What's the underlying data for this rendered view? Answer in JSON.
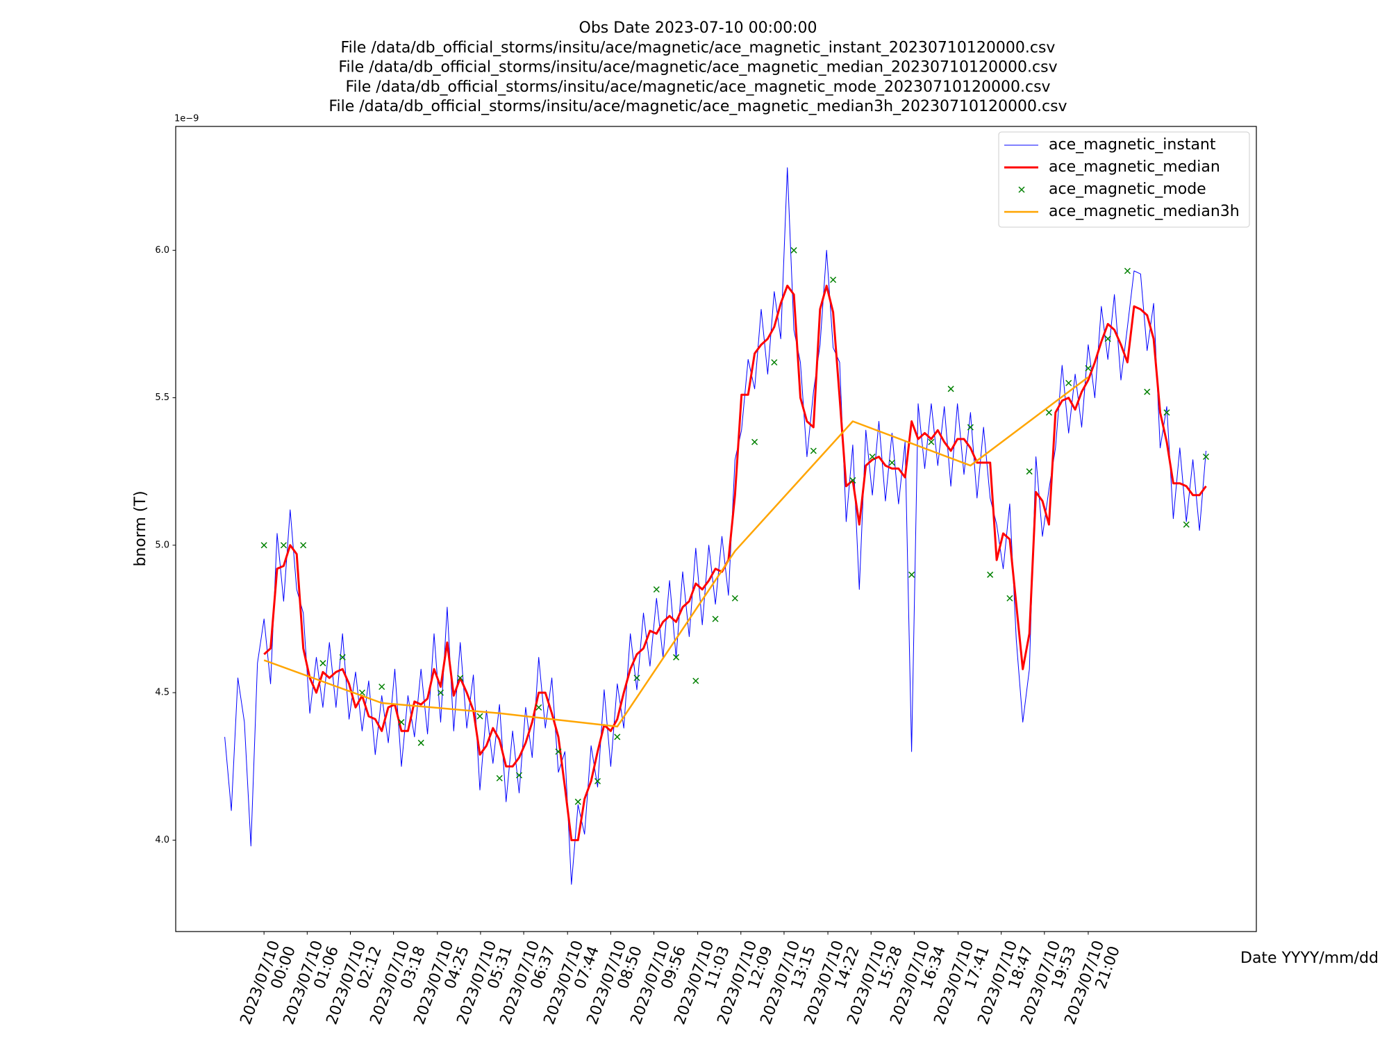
{
  "chart_data": {
    "type": "line",
    "title": [
      "Obs Date 2023-07-10 00:00:00",
      "File /data/db_official_storms/insitu/ace/magnetic/ace_magnetic_instant_20230710120000.csv",
      "File /data/db_official_storms/insitu/ace/magnetic/ace_magnetic_median_20230710120000.csv",
      "File /data/db_official_storms/insitu/ace/magnetic/ace_magnetic_mode_20230710120000.csv",
      "File /data/db_official_storms/insitu/ace/magnetic/ace_magnetic_median3h_20230710120000.csv"
    ],
    "xlabel": "Date YYYY/mm/dd",
    "ylabel": "bnorm (T)",
    "y_offset_label": "1e−9",
    "legend": "upper right",
    "xlim": [
      "2023-07-09T21:45",
      "2023-07-11T01:17"
    ],
    "ylim": [
      3.69,
      6.42
    ],
    "yticks": [
      {
        "value": 4,
        "label": "4.0"
      },
      {
        "value": 4.5,
        "label": "4.5"
      },
      {
        "value": 5,
        "label": "5.0"
      },
      {
        "value": 5.5,
        "label": "5.5"
      },
      {
        "value": 6,
        "label": "6.0"
      }
    ],
    "xticks": [
      {
        "value": "2023-07-10T00:00",
        "label": "2023/07/10\n00:00"
      },
      {
        "value": "2023-07-10T01:06",
        "label": "2023/07/10\n01:06"
      },
      {
        "value": "2023-07-10T02:12",
        "label": "2023/07/10\n02:12"
      },
      {
        "value": "2023-07-10T03:18",
        "label": "2023/07/10\n03:18"
      },
      {
        "value": "2023-07-10T04:25",
        "label": "2023/07/10\n04:25"
      },
      {
        "value": "2023-07-10T05:31",
        "label": "2023/07/10\n05:31"
      },
      {
        "value": "2023-07-10T06:37",
        "label": "2023/07/10\n06:37"
      },
      {
        "value": "2023-07-10T07:44",
        "label": "2023/07/10\n07:44"
      },
      {
        "value": "2023-07-10T08:50",
        "label": "2023/07/10\n08:50"
      },
      {
        "value": "2023-07-10T09:56",
        "label": "2023/07/10\n09:56"
      },
      {
        "value": "2023-07-10T11:03",
        "label": "2023/07/10\n11:03"
      },
      {
        "value": "2023-07-10T12:09",
        "label": "2023/07/10\n12:09"
      },
      {
        "value": "2023-07-10T13:15",
        "label": "2023/07/10\n13:15"
      },
      {
        "value": "2023-07-10T14:22",
        "label": "2023/07/10\n14:22"
      },
      {
        "value": "2023-07-10T15:28",
        "label": "2023/07/10\n15:28"
      },
      {
        "value": "2023-07-10T16:34",
        "label": "2023/07/10\n16:34"
      },
      {
        "value": "2023-07-10T17:41",
        "label": "2023/07/10\n17:41"
      },
      {
        "value": "2023-07-10T18:47",
        "label": "2023/07/10\n18:47"
      },
      {
        "value": "2023-07-10T19:53",
        "label": "2023/07/10\n19:53"
      },
      {
        "value": "2023-07-10T21:00",
        "label": "2023/07/10\n21:00"
      }
    ],
    "x": [
      "2023-07-09T23:00",
      "2023-07-09T23:10",
      "2023-07-09T23:20",
      "2023-07-09T23:30",
      "2023-07-09T23:40",
      "2023-07-09T23:50",
      "2023-07-10T00:00",
      "2023-07-10T00:10",
      "2023-07-10T00:20",
      "2023-07-10T00:30",
      "2023-07-10T00:40",
      "2023-07-10T00:50",
      "2023-07-10T01:00",
      "2023-07-10T01:10",
      "2023-07-10T01:20",
      "2023-07-10T01:30",
      "2023-07-10T01:40",
      "2023-07-10T01:50",
      "2023-07-10T02:00",
      "2023-07-10T02:10",
      "2023-07-10T02:20",
      "2023-07-10T02:30",
      "2023-07-10T02:40",
      "2023-07-10T02:50",
      "2023-07-10T03:00",
      "2023-07-10T03:10",
      "2023-07-10T03:20",
      "2023-07-10T03:30",
      "2023-07-10T03:40",
      "2023-07-10T03:50",
      "2023-07-10T04:00",
      "2023-07-10T04:10",
      "2023-07-10T04:20",
      "2023-07-10T04:30",
      "2023-07-10T04:40",
      "2023-07-10T04:50",
      "2023-07-10T05:00",
      "2023-07-10T05:10",
      "2023-07-10T05:20",
      "2023-07-10T05:30",
      "2023-07-10T05:40",
      "2023-07-10T05:50",
      "2023-07-10T06:00",
      "2023-07-10T06:10",
      "2023-07-10T06:20",
      "2023-07-10T06:30",
      "2023-07-10T06:40",
      "2023-07-10T06:50",
      "2023-07-10T07:00",
      "2023-07-10T07:10",
      "2023-07-10T07:20",
      "2023-07-10T07:30",
      "2023-07-10T07:40",
      "2023-07-10T07:50",
      "2023-07-10T08:00",
      "2023-07-10T08:10",
      "2023-07-10T08:20",
      "2023-07-10T08:30",
      "2023-07-10T08:40",
      "2023-07-10T08:50",
      "2023-07-10T09:00",
      "2023-07-10T09:10",
      "2023-07-10T09:20",
      "2023-07-10T09:30",
      "2023-07-10T09:40",
      "2023-07-10T09:50",
      "2023-07-10T10:00",
      "2023-07-10T10:10",
      "2023-07-10T10:20",
      "2023-07-10T10:30",
      "2023-07-10T10:40",
      "2023-07-10T10:50",
      "2023-07-10T11:00",
      "2023-07-10T11:10",
      "2023-07-10T11:20",
      "2023-07-10T11:30",
      "2023-07-10T11:40",
      "2023-07-10T11:50",
      "2023-07-10T12:00",
      "2023-07-10T12:10",
      "2023-07-10T12:20",
      "2023-07-10T12:30",
      "2023-07-10T12:40",
      "2023-07-10T12:50",
      "2023-07-10T13:00",
      "2023-07-10T13:10",
      "2023-07-10T13:20",
      "2023-07-10T13:30",
      "2023-07-10T13:40",
      "2023-07-10T13:50",
      "2023-07-10T14:00",
      "2023-07-10T14:10",
      "2023-07-10T14:20",
      "2023-07-10T14:30",
      "2023-07-10T14:40",
      "2023-07-10T14:50",
      "2023-07-10T15:00",
      "2023-07-10T15:10",
      "2023-07-10T15:20",
      "2023-07-10T15:30",
      "2023-07-10T15:40",
      "2023-07-10T15:50",
      "2023-07-10T16:00",
      "2023-07-10T16:10",
      "2023-07-10T16:20",
      "2023-07-10T16:30",
      "2023-07-10T16:40",
      "2023-07-10T16:50",
      "2023-07-10T17:00",
      "2023-07-10T17:10",
      "2023-07-10T17:20",
      "2023-07-10T17:30",
      "2023-07-10T17:40",
      "2023-07-10T17:50",
      "2023-07-10T18:00",
      "2023-07-10T18:10",
      "2023-07-10T18:20",
      "2023-07-10T18:30",
      "2023-07-10T18:40",
      "2023-07-10T18:50",
      "2023-07-10T19:00",
      "2023-07-10T19:10",
      "2023-07-10T19:20",
      "2023-07-10T19:30",
      "2023-07-10T19:40",
      "2023-07-10T19:50",
      "2023-07-10T20:00",
      "2023-07-10T20:10",
      "2023-07-10T20:20",
      "2023-07-10T20:30",
      "2023-07-10T20:40",
      "2023-07-10T20:50",
      "2023-07-10T21:00",
      "2023-07-10T21:10",
      "2023-07-10T21:20",
      "2023-07-10T21:30",
      "2023-07-10T21:40",
      "2023-07-10T21:50",
      "2023-07-10T22:00",
      "2023-07-10T22:10",
      "2023-07-10T22:20",
      "2023-07-10T22:30",
      "2023-07-10T22:40",
      "2023-07-10T22:50",
      "2023-07-10T23:00",
      "2023-07-10T23:10",
      "2023-07-10T23:20",
      "2023-07-10T23:30",
      "2023-07-10T23:40",
      "2023-07-10T23:50",
      "2023-07-11T00:00"
    ],
    "series": [
      {
        "name": "ace_magnetic_instant",
        "color": "#0000ff",
        "kind": "line",
        "line_width": 1,
        "values": [
          4.35,
          4.1,
          4.55,
          4.4,
          3.98,
          4.6,
          4.75,
          4.53,
          5.04,
          4.81,
          5.12,
          4.85,
          4.77,
          4.43,
          4.62,
          4.45,
          4.67,
          4.45,
          4.7,
          4.41,
          4.57,
          4.37,
          4.54,
          4.29,
          4.49,
          4.33,
          4.58,
          4.25,
          4.49,
          4.35,
          4.58,
          4.36,
          4.7,
          4.4,
          4.79,
          4.37,
          4.67,
          4.38,
          4.56,
          4.17,
          4.44,
          4.26,
          4.46,
          4.13,
          4.37,
          4.16,
          4.45,
          4.28,
          4.62,
          4.38,
          4.55,
          4.23,
          4.3,
          3.85,
          4.12,
          4.02,
          4.32,
          4.18,
          4.51,
          4.25,
          4.53,
          4.38,
          4.7,
          4.51,
          4.77,
          4.59,
          4.82,
          4.62,
          4.88,
          4.62,
          4.91,
          4.69,
          4.99,
          4.73,
          5.0,
          4.8,
          5.03,
          4.83,
          5.29,
          5.39,
          5.63,
          5.53,
          5.8,
          5.58,
          5.86,
          5.7,
          6.28,
          5.73,
          5.62,
          5.3,
          5.52,
          5.68,
          6.0,
          5.67,
          5.62,
          5.08,
          5.34,
          4.85,
          5.39,
          5.17,
          5.42,
          5.15,
          5.38,
          5.14,
          5.35,
          4.3,
          5.48,
          5.26,
          5.48,
          5.27,
          5.47,
          5.2,
          5.48,
          5.24,
          5.45,
          5.16,
          5.4,
          5.16,
          5.07,
          4.92,
          5.14,
          4.68,
          4.4,
          4.58,
          5.3,
          5.03,
          5.19,
          5.33,
          5.61,
          5.38,
          5.58,
          5.4,
          5.68,
          5.5,
          5.81,
          5.63,
          5.85,
          5.56,
          5.74,
          5.93,
          5.92,
          5.66,
          5.82,
          5.33,
          5.47,
          5.09,
          5.33,
          5.08,
          5.29,
          5.05,
          5.32
        ]
      },
      {
        "name": "ace_magnetic_median",
        "color": "#ff0000",
        "kind": "line",
        "line_width": 3,
        "values": [
          null,
          null,
          null,
          null,
          null,
          null,
          4.63,
          4.65,
          4.92,
          4.93,
          5.0,
          4.97,
          4.65,
          4.55,
          4.5,
          4.57,
          4.55,
          4.57,
          4.58,
          4.53,
          4.45,
          4.49,
          4.42,
          4.41,
          4.37,
          4.45,
          4.46,
          4.37,
          4.37,
          4.47,
          4.46,
          4.48,
          4.58,
          4.52,
          4.67,
          4.49,
          4.55,
          4.5,
          4.44,
          4.29,
          4.32,
          4.38,
          4.34,
          4.25,
          4.25,
          4.28,
          4.33,
          4.4,
          4.5,
          4.5,
          4.43,
          4.35,
          4.18,
          4.0,
          4.0,
          4.14,
          4.2,
          4.3,
          4.39,
          4.37,
          4.41,
          4.5,
          4.58,
          4.63,
          4.65,
          4.71,
          4.7,
          4.74,
          4.76,
          4.74,
          4.79,
          4.81,
          4.87,
          4.85,
          4.88,
          4.92,
          4.91,
          4.95,
          5.17,
          5.51,
          5.51,
          5.65,
          5.68,
          5.7,
          5.74,
          5.82,
          5.88,
          5.85,
          5.5,
          5.42,
          5.4,
          5.8,
          5.88,
          5.79,
          5.5,
          5.2,
          5.22,
          5.07,
          5.27,
          5.29,
          5.3,
          5.27,
          5.26,
          5.26,
          5.23,
          5.42,
          5.36,
          5.38,
          5.36,
          5.39,
          5.35,
          5.32,
          5.36,
          5.36,
          5.33,
          5.28,
          5.28,
          5.28,
          4.95,
          5.04,
          5.02,
          4.8,
          4.58,
          4.7,
          5.18,
          5.15,
          5.07,
          5.45,
          5.49,
          5.5,
          5.46,
          5.52,
          5.56,
          5.62,
          5.69,
          5.75,
          5.73,
          5.68,
          5.62,
          5.81,
          5.8,
          5.78,
          5.7,
          5.45,
          5.35,
          5.21,
          5.21,
          5.2,
          5.17,
          5.17,
          5.2
        ]
      },
      {
        "name": "ace_magnetic_mode",
        "color": "#008000",
        "kind": "scatter",
        "x": [
          "2023-07-10T00:00",
          "2023-07-10T00:30",
          "2023-07-10T01:00",
          "2023-07-10T01:30",
          "2023-07-10T02:00",
          "2023-07-10T02:30",
          "2023-07-10T03:00",
          "2023-07-10T03:30",
          "2023-07-10T04:00",
          "2023-07-10T04:30",
          "2023-07-10T05:00",
          "2023-07-10T05:30",
          "2023-07-10T06:00",
          "2023-07-10T06:30",
          "2023-07-10T07:00",
          "2023-07-10T07:30",
          "2023-07-10T08:00",
          "2023-07-10T08:30",
          "2023-07-10T09:00",
          "2023-07-10T09:30",
          "2023-07-10T10:00",
          "2023-07-10T10:30",
          "2023-07-10T11:00",
          "2023-07-10T11:30",
          "2023-07-10T12:00",
          "2023-07-10T12:30",
          "2023-07-10T13:00",
          "2023-07-10T13:30",
          "2023-07-10T14:00",
          "2023-07-10T14:30",
          "2023-07-10T15:00",
          "2023-07-10T15:30",
          "2023-07-10T16:00",
          "2023-07-10T16:30",
          "2023-07-10T17:00",
          "2023-07-10T17:30",
          "2023-07-10T18:00",
          "2023-07-10T18:30",
          "2023-07-10T19:00",
          "2023-07-10T19:30",
          "2023-07-10T20:00",
          "2023-07-10T20:30",
          "2023-07-10T21:00",
          "2023-07-10T21:30",
          "2023-07-10T22:00",
          "2023-07-10T22:30",
          "2023-07-10T23:00",
          "2023-07-10T23:30",
          "2023-07-11T00:00"
        ],
        "values": [
          5.0,
          5.0,
          5.0,
          4.6,
          4.62,
          4.5,
          4.52,
          4.4,
          4.33,
          4.5,
          4.55,
          4.42,
          4.21,
          4.22,
          4.45,
          4.3,
          4.13,
          4.2,
          4.35,
          4.55,
          4.85,
          4.62,
          4.54,
          4.75,
          4.82,
          5.35,
          5.62,
          6.0,
          5.32,
          5.9,
          5.22,
          5.3,
          5.28,
          4.9,
          5.35,
          5.53,
          5.4,
          4.9,
          4.82,
          5.25,
          5.45,
          5.55,
          5.6,
          5.7,
          5.93,
          5.52,
          5.45,
          5.07,
          5.3
        ]
      },
      {
        "name": "ace_magnetic_median3h",
        "color": "#ffa500",
        "kind": "line",
        "line_width": 2.5,
        "x": [
          "2023-07-10T00:00",
          "2023-07-10T03:00",
          "2023-07-10T06:00",
          "2023-07-10T09:00",
          "2023-07-10T12:00",
          "2023-07-10T15:00",
          "2023-07-10T18:00",
          "2023-07-10T21:00"
        ],
        "values": [
          4.61,
          4.465,
          4.43,
          4.385,
          4.98,
          5.42,
          5.27,
          5.57
        ]
      }
    ]
  }
}
